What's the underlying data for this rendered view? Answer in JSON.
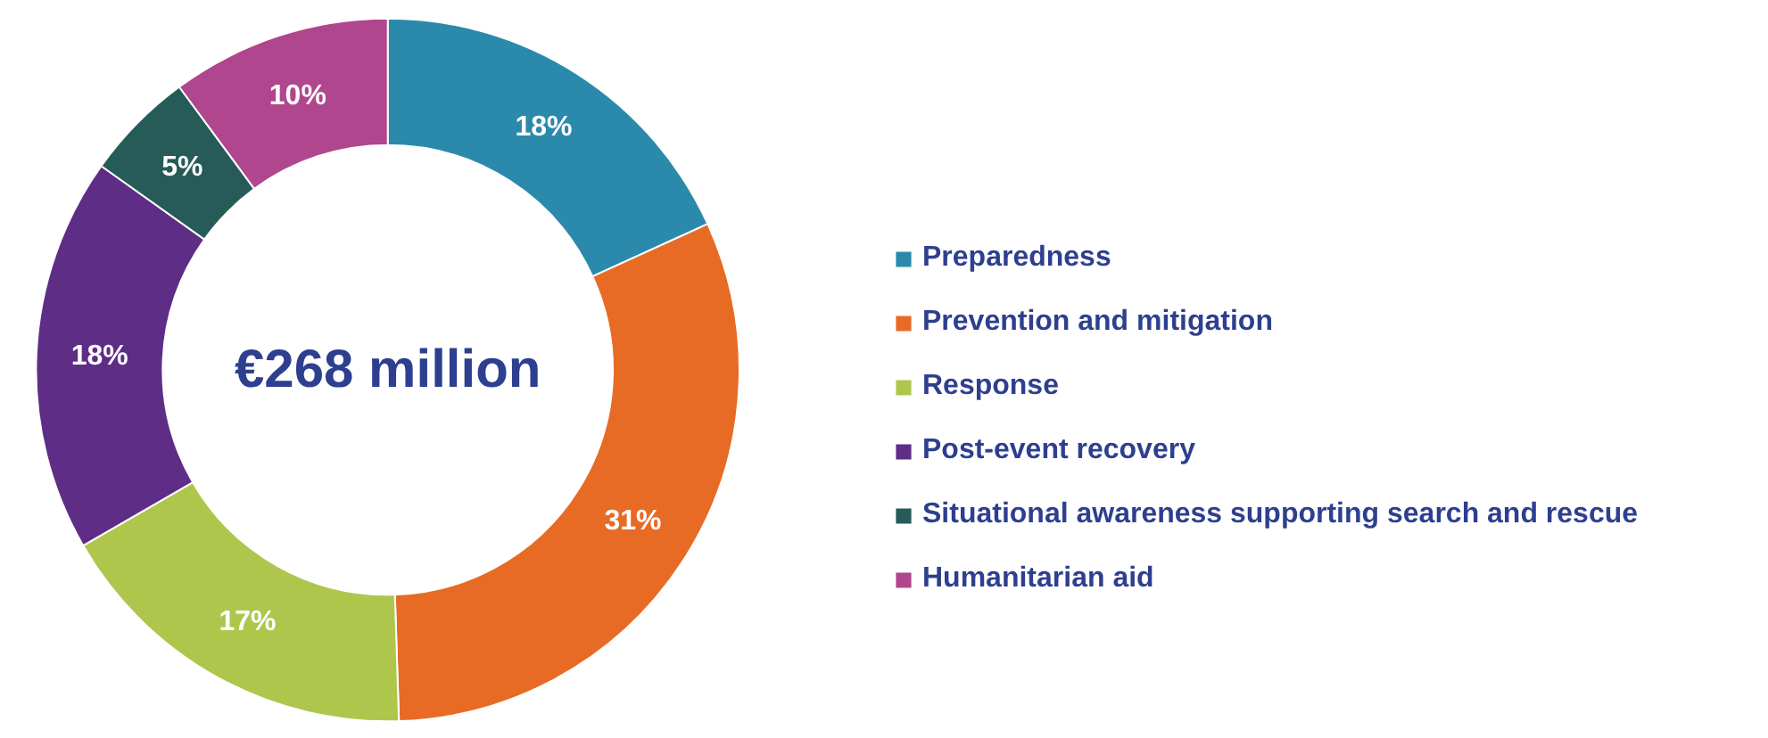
{
  "chart_data": {
    "type": "donut",
    "categories": [
      "Preparedness",
      "Prevention and mitigation",
      "Response",
      "Post-event recovery",
      "Situational awareness supporting search and rescue",
      "Humanitarian aid"
    ],
    "values": [
      18,
      31,
      17,
      18,
      5,
      10
    ],
    "colors": [
      "#2b8aab",
      "#e76b25",
      "#afc64d",
      "#5e2d86",
      "#265b57",
      "#b0468e"
    ],
    "value_labels": [
      "18%",
      "31%",
      "17%",
      "18%",
      "5%",
      "10%"
    ],
    "annotations": [
      "€268 million"
    ],
    "legend": "right"
  }
}
